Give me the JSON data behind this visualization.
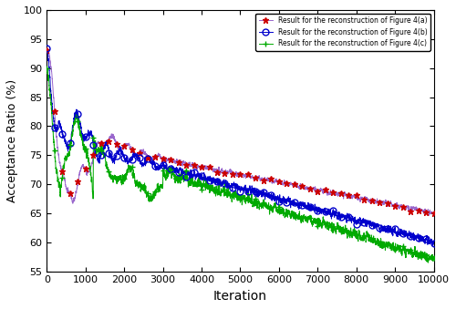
{
  "xlabel": "Iteration",
  "ylabel": "Acceptance Ratio (%)",
  "xlim": [
    0,
    10000
  ],
  "ylim": [
    55,
    100
  ],
  "yticks": [
    55,
    60,
    65,
    70,
    75,
    80,
    85,
    90,
    95,
    100
  ],
  "xticks": [
    0,
    1000,
    2000,
    3000,
    4000,
    5000,
    6000,
    7000,
    8000,
    9000,
    10000
  ],
  "line_a_line_color": "#9966cc",
  "line_a_marker_color": "#cc0000",
  "line_b_color": "#0000cc",
  "line_c_color": "#00aa00",
  "legend_a": "Result for the reconstruction of Figure 4(a)",
  "legend_b": "Result for the reconstruction of Figure 4(b)",
  "legend_c": "Result for the reconstruction of Figure 4(c)",
  "marker_a": "*",
  "marker_b": "o",
  "marker_c": "+",
  "marker_interval": 200
}
